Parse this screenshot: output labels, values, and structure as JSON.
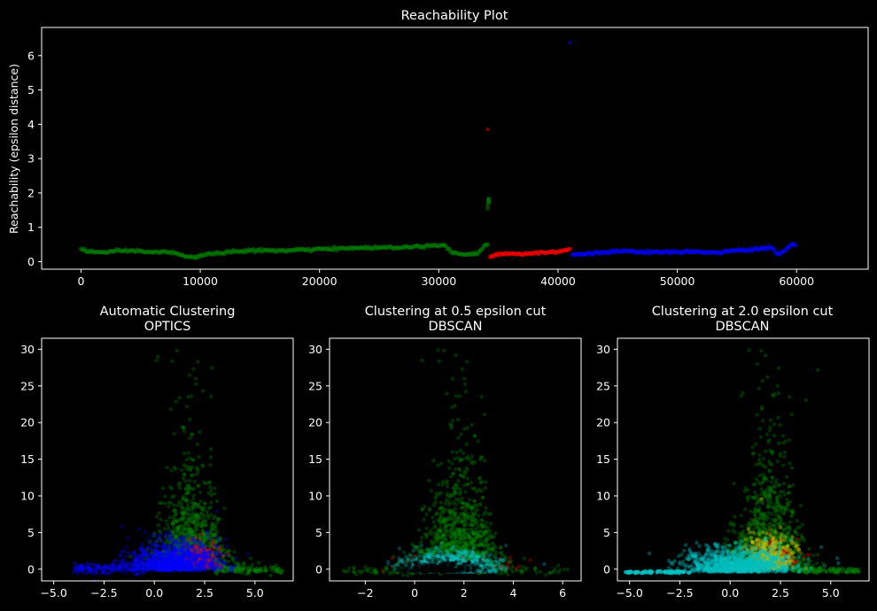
{
  "chart_data": [
    {
      "type": "scatter",
      "title": "Reachability Plot",
      "xlabel": "",
      "ylabel": "Reachability (epsilon distance)",
      "xlim": [
        -3300,
        66000
      ],
      "ylim": [
        -0.22,
        6.82
      ],
      "xticks": [
        0,
        10000,
        20000,
        30000,
        40000,
        50000,
        60000
      ],
      "yticks": [
        0,
        1,
        2,
        3,
        4,
        5,
        6
      ],
      "grid": false,
      "colors": {
        "green": "#008000",
        "red": "#ff0000",
        "blue": "#0000ff",
        "noise": "#000000"
      },
      "segments": [
        {
          "color": "green",
          "x": [
            0,
            600,
            1500,
            3000,
            4500,
            6000,
            7500,
            8500,
            9300,
            10000,
            11500,
            13000,
            15000,
            17000,
            19000,
            21000,
            23000,
            25000,
            27000,
            29000,
            30500,
            31000,
            31800,
            32500,
            33300,
            33800,
            34200
          ],
          "y": [
            0.38,
            0.3,
            0.27,
            0.3,
            0.32,
            0.27,
            0.28,
            0.2,
            0.1,
            0.18,
            0.25,
            0.3,
            0.33,
            0.32,
            0.35,
            0.37,
            0.4,
            0.41,
            0.42,
            0.46,
            0.49,
            0.3,
            0.22,
            0.2,
            0.25,
            0.45,
            0.55
          ]
        },
        {
          "color": "green",
          "x": [
            34100,
            34150,
            34200,
            34250
          ],
          "y": [
            1.6,
            1.75,
            1.85,
            1.7
          ]
        },
        {
          "color": "red",
          "x": [
            34300,
            35000,
            36000,
            37000,
            38000,
            39000,
            40000,
            40800,
            41100
          ],
          "y": [
            0.15,
            0.2,
            0.25,
            0.22,
            0.25,
            0.28,
            0.3,
            0.35,
            0.38
          ]
        },
        {
          "color": "red",
          "x": [
            34100
          ],
          "y": [
            3.85
          ]
        },
        {
          "color": "blue",
          "x": [
            41200,
            43000,
            45000,
            47000,
            49000,
            51000,
            53000,
            55000,
            57000,
            58000,
            58300,
            59000,
            59500,
            60000
          ],
          "y": [
            0.2,
            0.25,
            0.3,
            0.28,
            0.27,
            0.3,
            0.25,
            0.33,
            0.38,
            0.42,
            0.2,
            0.3,
            0.5,
            0.45
          ]
        },
        {
          "color": "blue",
          "x": [
            41000
          ],
          "y": [
            6.38
          ]
        }
      ]
    },
    {
      "type": "scatter",
      "title": "Automatic Clustering",
      "subtitle": "OPTICS",
      "xlim": [
        -5.6,
        6.9
      ],
      "ylim": [
        -1.6,
        31.5
      ],
      "xticks": [
        -5.0,
        -2.5,
        0.0,
        2.5,
        5.0
      ],
      "xtick_labels": [
        "−5.0",
        "−2.5",
        "0.0",
        "2.5",
        "5.0"
      ],
      "yticks": [
        0,
        5,
        10,
        15,
        20,
        25,
        30
      ],
      "colors": [
        "#008000",
        "#0000ff",
        "#ff0000"
      ]
    },
    {
      "type": "scatter",
      "title": "Clustering at 0.5 epsilon cut",
      "subtitle": "DBSCAN",
      "xlim": [
        -3.45,
        6.75
      ],
      "ylim": [
        -1.6,
        31.5
      ],
      "xticks": [
        -2,
        0,
        2,
        4,
        6
      ],
      "xtick_labels": [
        "−2",
        "0",
        "2",
        "4",
        "6"
      ],
      "yticks": [
        0,
        5,
        10,
        15,
        20,
        25,
        30
      ],
      "colors": [
        "#008000",
        "#00bfbf",
        "#ff0000",
        "#000000"
      ]
    },
    {
      "type": "scatter",
      "title": "Clustering at 2.0 epsilon cut",
      "subtitle": "DBSCAN",
      "xlim": [
        -5.6,
        6.9
      ],
      "ylim": [
        -1.6,
        31.5
      ],
      "xticks": [
        -5.0,
        -2.5,
        0.0,
        2.5,
        5.0
      ],
      "xtick_labels": [
        "−5.0",
        "−2.5",
        "0.0",
        "2.5",
        "5.0"
      ],
      "yticks": [
        0,
        5,
        10,
        15,
        20,
        25,
        30
      ],
      "colors": [
        "#008000",
        "#00bfbf",
        "#bfbf00",
        "#ff0000"
      ]
    }
  ]
}
